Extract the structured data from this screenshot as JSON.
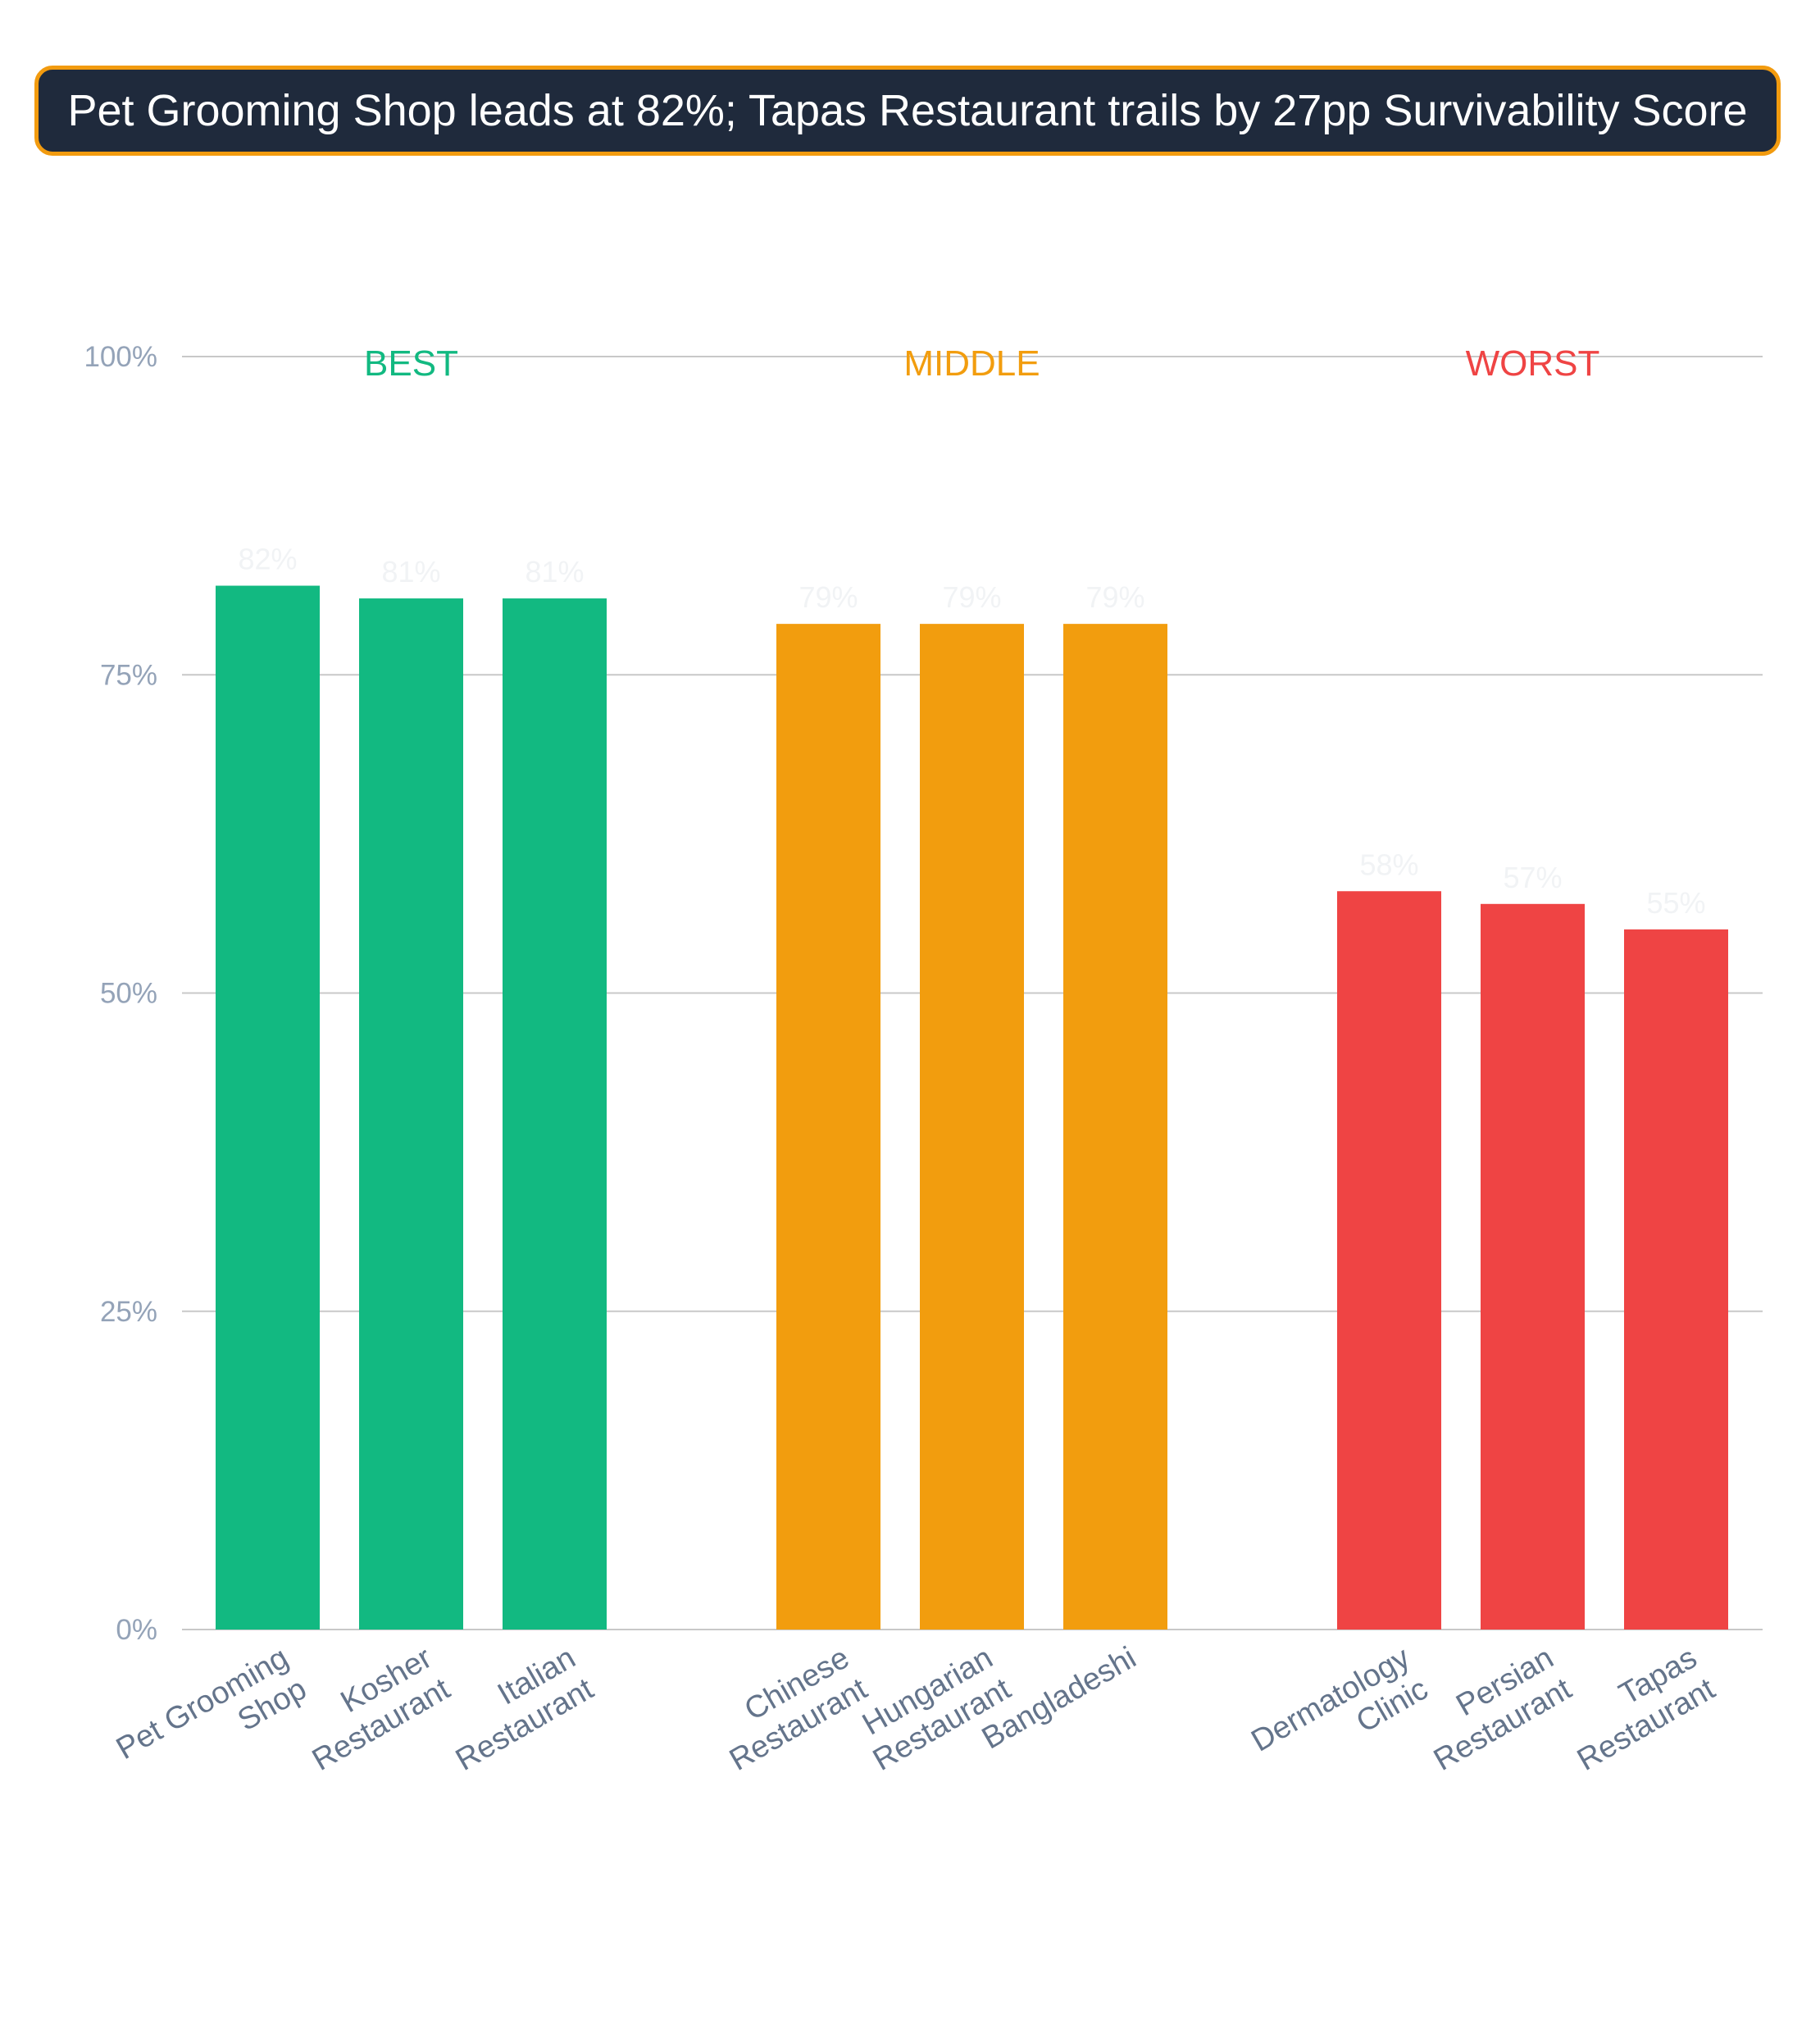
{
  "chart_data": {
    "type": "bar",
    "title": "Pet Grooming Shop leads at 82%; Tapas Restaurant trails by 27pp Survivability Score",
    "ylim": [
      0,
      100
    ],
    "y_ticks": [
      "0%",
      "25%",
      "50%",
      "75%",
      "100%"
    ],
    "y_tick_values": [
      0,
      25,
      50,
      75,
      100
    ],
    "grid": true,
    "groups": [
      {
        "name": "BEST",
        "color": "#12b981",
        "bars": [
          {
            "category": [
              "Pet Grooming",
              "Shop"
            ],
            "value": 82,
            "label": "82%"
          },
          {
            "category": [
              "Kosher",
              "Restaurant"
            ],
            "value": 81,
            "label": "81%"
          },
          {
            "category": [
              "Italian",
              "Restaurant"
            ],
            "value": 81,
            "label": "81%"
          }
        ]
      },
      {
        "name": "MIDDLE",
        "color": "#f29d0e",
        "bars": [
          {
            "category": [
              "Chinese",
              "Restaurant"
            ],
            "value": 79,
            "label": "79%"
          },
          {
            "category": [
              "Hungarian",
              "Restaurant"
            ],
            "value": 79,
            "label": "79%"
          },
          {
            "category": [
              "Bangladeshi"
            ],
            "value": 79,
            "label": "79%"
          }
        ]
      },
      {
        "name": "WORST",
        "color": "#ef4444",
        "bars": [
          {
            "category": [
              "Dermatology",
              "Clinic"
            ],
            "value": 58,
            "label": "58%"
          },
          {
            "category": [
              "Persian",
              "Restaurant"
            ],
            "value": 57,
            "label": "57%"
          },
          {
            "category": [
              "Tapas",
              "Restaurant"
            ],
            "value": 55,
            "label": "55%"
          }
        ]
      }
    ]
  }
}
